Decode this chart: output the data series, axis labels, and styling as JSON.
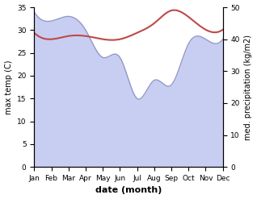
{
  "months": [
    "Jan",
    "Feb",
    "Mar",
    "Apr",
    "May",
    "Jun",
    "Jul",
    "Aug",
    "Sep",
    "Oct",
    "Nov",
    "Dec"
  ],
  "max_temp": [
    34,
    32,
    33,
    30,
    24,
    24,
    15,
    19,
    18,
    27,
    28,
    28
  ],
  "med_precip": [
    42,
    40,
    41,
    41,
    40,
    40,
    42,
    45,
    49,
    47,
    43,
    43
  ],
  "temp_fill_color": "#c8cef2",
  "temp_line_color": "#9098c8",
  "precip_color": "#c04848",
  "left_ylim": [
    0,
    35
  ],
  "right_ylim": [
    0,
    50
  ],
  "left_yticks": [
    0,
    5,
    10,
    15,
    20,
    25,
    30,
    35
  ],
  "right_yticks": [
    0,
    10,
    20,
    30,
    40,
    50
  ],
  "xlabel": "date (month)",
  "ylabel_left": "max temp (C)",
  "ylabel_right": "med. precipitation (kg/m2)",
  "fig_width": 3.18,
  "fig_height": 2.47,
  "dpi": 100
}
